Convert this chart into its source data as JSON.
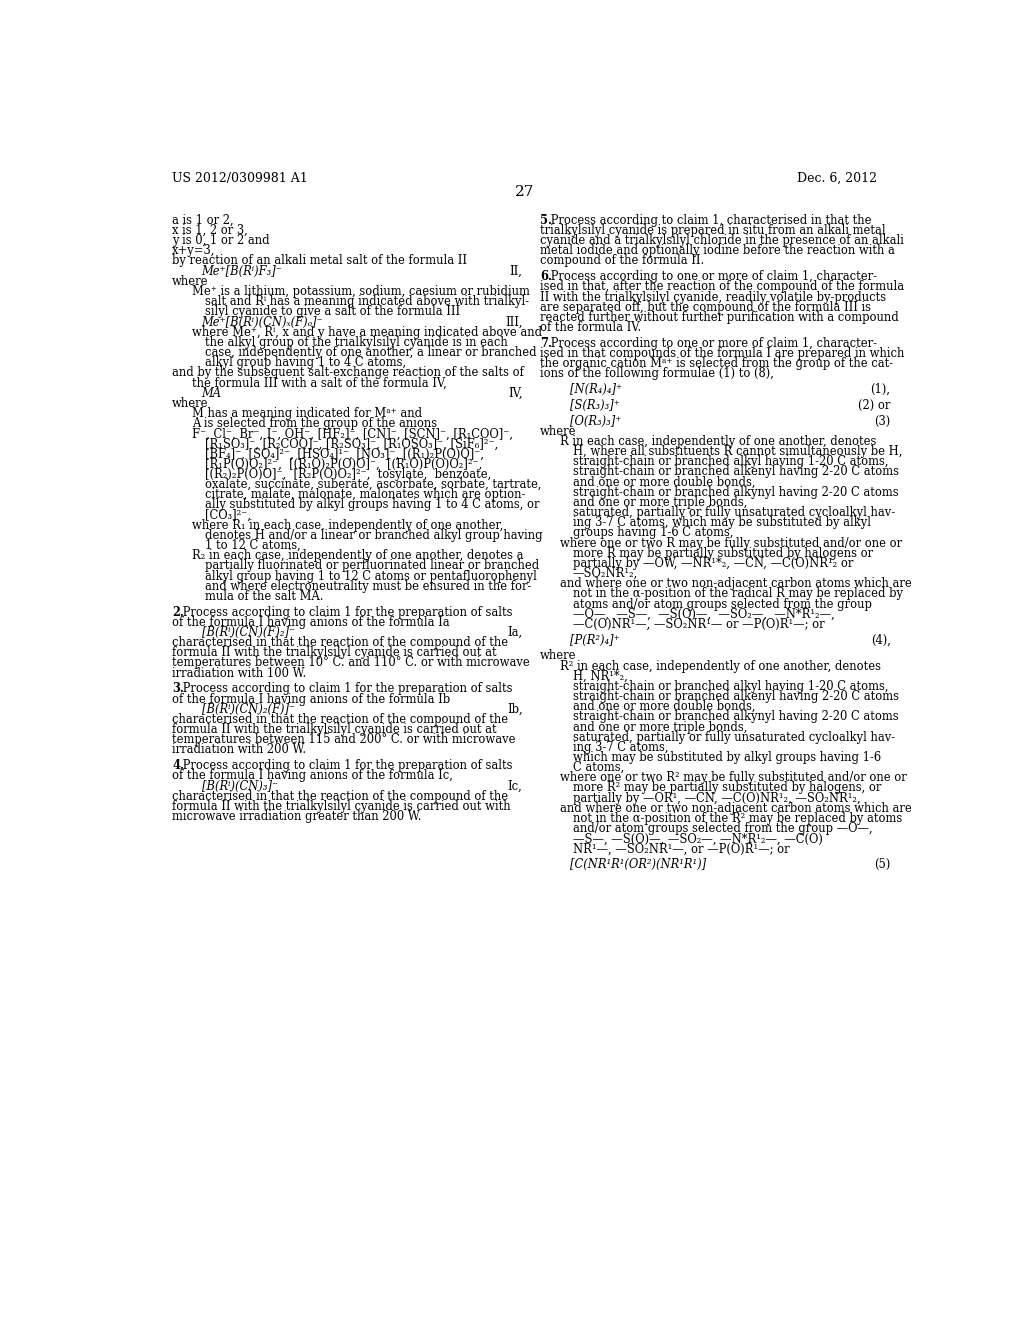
{
  "header_left": "US 2012/0309981 A1",
  "header_right": "Dec. 6, 2012",
  "page_number": "27",
  "background_color": "#ffffff",
  "text_color": "#000000",
  "left_column": [
    {
      "type": "indent0",
      "text": "a is 1 or 2,"
    },
    {
      "type": "indent0",
      "text": "x is 1, 2 or 3,"
    },
    {
      "type": "indent0",
      "text": "y is 0, 1 or 2 and"
    },
    {
      "type": "indent0",
      "text": "x+y=3,"
    },
    {
      "type": "indent0",
      "text": "by reaction of an alkali metal salt of the formula II"
    },
    {
      "type": "formula_line",
      "left": "Me⁺[B(Rⁱ)F₃]⁻",
      "right": "II,"
    },
    {
      "type": "indent0",
      "text": "where"
    },
    {
      "type": "indent1",
      "text": "Me⁺ is a lithium, potassium, sodium, caesium or rubidium"
    },
    {
      "type": "indent2",
      "text": "salt and Rⁱ has a meaning indicated above with trialkyl-"
    },
    {
      "type": "indent2",
      "text": "silyl cyanide to give a salt of the formula III"
    },
    {
      "type": "formula_line",
      "left": "Me⁺[B(Rⁱ)(CN)ₓ(F)ₒ]⁻",
      "right": "III,"
    },
    {
      "type": "indent1",
      "text": "where Me⁺, Rⁱ, x and y have a meaning indicated above and"
    },
    {
      "type": "indent2",
      "text": "the alkyl group of the trialkylsilyl cyanide is in each"
    },
    {
      "type": "indent2",
      "text": "case, independently of one another, a linear or branched"
    },
    {
      "type": "indent2",
      "text": "alkyl group having 1 to 4 C atoms,"
    },
    {
      "type": "indent0",
      "text": "and by the subsequent salt-exchange reaction of the salts of"
    },
    {
      "type": "indent1",
      "text": "the formula III with a salt of the formula IV,"
    },
    {
      "type": "formula_line",
      "left": "MA",
      "right": "IV,"
    },
    {
      "type": "indent0",
      "text": "where"
    },
    {
      "type": "indent1",
      "text": "M has a meaning indicated for Mᵃ⁺ and"
    },
    {
      "type": "indent1",
      "text": "A is selected from the group of the anions"
    },
    {
      "type": "indent1",
      "text": "F⁻, Cl⁻, Br⁻, I⁻, OH⁻, [HF₂]⁻, [CN]⁻, [SCN]⁻, [R₁COO]⁻,"
    },
    {
      "type": "indent2",
      "text": "[R₁SO₃]⁻, [R₂COO]⁻, [R₂SO₃]⁻, [R₁OSO₃]⁻, [SiF₆]²⁻,"
    },
    {
      "type": "indent2",
      "text": "[BF₄]⁻, [SO₄]²⁻, [HSO₄]¹⁻, [NO₃]⁻, [(R₁)₂P(O)O]⁻,"
    },
    {
      "type": "indent2",
      "text": "[R₁P(O)O₂]²⁻,  [(R₁O)₂P(O)O]⁻,  [(R₁O)P(O)O₂]²⁻,"
    },
    {
      "type": "indent2",
      "text": "[(R₂)₂P(O)O]⁻,  [R₂P(O)O₂]²⁻,  tosylate,  benzoate,"
    },
    {
      "type": "indent2",
      "text": "oxalate, succinate, suberate, ascorbate, sorbate, tartrate,"
    },
    {
      "type": "indent2",
      "text": "citrate, malate, malonate, malonates which are option-"
    },
    {
      "type": "indent2",
      "text": "ally substituted by alkyl groups having 1 to 4 C atoms, or"
    },
    {
      "type": "indent2",
      "text": "[CO₃]²⁻,"
    },
    {
      "type": "indent1",
      "text": "where R₁ in each case, independently of one another,"
    },
    {
      "type": "indent2",
      "text": "denotes H and/or a linear or branched alkyl group having"
    },
    {
      "type": "indent2",
      "text": "1 to 12 C atoms,"
    },
    {
      "type": "indent1",
      "text": "R₂ in each case, independently of one another, denotes a"
    },
    {
      "type": "indent2",
      "text": "partially fluorinated or perfluorinated linear or branched"
    },
    {
      "type": "indent2",
      "text": "alkyl group having 1 to 12 C atoms or pentafluorophenyl"
    },
    {
      "type": "indent2",
      "text": "and where electroneutrality must be ensured in the for-"
    },
    {
      "type": "indent2",
      "text": "mula of the salt MA."
    },
    {
      "type": "blank",
      "text": ""
    },
    {
      "type": "claim_num",
      "text": "2. Process according to claim 1 for the preparation of salts"
    },
    {
      "type": "indent0",
      "text": "of the formula I having anions of the formula Ia"
    },
    {
      "type": "formula_line",
      "left": "[B(Rⁱ)(CN)(F)₂]⁻",
      "right": "Ia,"
    },
    {
      "type": "indent0",
      "text": "characterised in that the reaction of the compound of the"
    },
    {
      "type": "indent0",
      "text": "formula II with the trialkylsilyl cyanide is carried out at"
    },
    {
      "type": "indent0",
      "text": "temperatures between 10° C. and 110° C. or with microwave"
    },
    {
      "type": "indent0",
      "text": "irradiation with 100 W."
    },
    {
      "type": "blank",
      "text": ""
    },
    {
      "type": "claim_num",
      "text": "3. Process according to claim 1 for the preparation of salts"
    },
    {
      "type": "indent0",
      "text": "of the formula I having anions of the formula Ib"
    },
    {
      "type": "formula_line",
      "left": "[B(Rⁱ)(CN)₂(F)]⁻",
      "right": "Ib,"
    },
    {
      "type": "indent0",
      "text": "characterised in that the reaction of the compound of the"
    },
    {
      "type": "indent0",
      "text": "formula II with the trialkylsilyl cyanide is carried out at"
    },
    {
      "type": "indent0",
      "text": "temperatures between 115 and 200° C. or with microwave"
    },
    {
      "type": "indent0",
      "text": "irradiation with 200 W."
    },
    {
      "type": "blank",
      "text": ""
    },
    {
      "type": "claim_num",
      "text": "4. Process according to claim 1 for the preparation of salts"
    },
    {
      "type": "indent0",
      "text": "of the formula I having anions of the formula Ic,"
    },
    {
      "type": "formula_line",
      "left": "[B(Rⁱ)(CN)₃]⁻",
      "right": "Ic,"
    },
    {
      "type": "indent0",
      "text": "characterised in that the reaction of the compound of the"
    },
    {
      "type": "indent0",
      "text": "formula II with the trialkylsilyl cyanide is carried out with"
    },
    {
      "type": "indent0",
      "text": "microwave irradiation greater than 200 W."
    }
  ],
  "right_column": [
    {
      "type": "claim_num",
      "text": "5. Process according to claim 1, characterised in that the"
    },
    {
      "type": "indent0",
      "text": "trialkylsilyl cyanide is prepared in situ from an alkali metal"
    },
    {
      "type": "indent0",
      "text": "cyanide and a trialkylsilyl chloride in the presence of an alkali"
    },
    {
      "type": "indent0",
      "text": "metal iodide and optionally iodine before the reaction with a"
    },
    {
      "type": "indent0",
      "text": "compound of the formula II."
    },
    {
      "type": "blank",
      "text": ""
    },
    {
      "type": "claim_num6",
      "text": "6. Process according to one or more of claim 1, character-"
    },
    {
      "type": "indent0",
      "text": "ised in that, after the reaction of the compound of the formula"
    },
    {
      "type": "indent0",
      "text": "II with the trialkylsilyl cyanide, readily volatile by-products"
    },
    {
      "type": "indent0",
      "text": "are separated off, but the compound of the formula III is"
    },
    {
      "type": "indent0",
      "text": "reacted further without further purification with a compound"
    },
    {
      "type": "indent0",
      "text": "of the formula IV."
    },
    {
      "type": "blank",
      "text": ""
    },
    {
      "type": "claim_num",
      "text": "7. Process according to one or more of claim 1, character-"
    },
    {
      "type": "indent0",
      "text": "ised in that compounds of the formula I are prepared in which"
    },
    {
      "type": "indent0",
      "text": "the organic cation Mᵃ⁺ is selected from the group of the cat-"
    },
    {
      "type": "indent0",
      "text": "ions of the following formulae (1) to (8),"
    },
    {
      "type": "blank",
      "text": ""
    },
    {
      "type": "formula_numbered",
      "left": "[N(R₄)₄]⁺",
      "right": "(1),"
    },
    {
      "type": "blank",
      "text": ""
    },
    {
      "type": "formula_numbered",
      "left": "[S(R₃)₃]⁺",
      "right": "(2) or"
    },
    {
      "type": "blank",
      "text": ""
    },
    {
      "type": "formula_numbered",
      "left": "[O(R₃)₃]⁺",
      "right": "(3)"
    },
    {
      "type": "indent0",
      "text": "where"
    },
    {
      "type": "indent1",
      "text": "R in each case, independently of one another, denotes"
    },
    {
      "type": "indent2",
      "text": "H, where all substituents R cannot simultaneously be H,"
    },
    {
      "type": "indent2",
      "text": "straight-chain or branched alkyl having 1-20 C atoms,"
    },
    {
      "type": "indent2",
      "text": "straight-chain or branched alkenyl having 2-20 C atoms"
    },
    {
      "type": "indent2",
      "text": "and one or more double bonds,"
    },
    {
      "type": "indent2",
      "text": "straight-chain or branched alkynyl having 2-20 C atoms"
    },
    {
      "type": "indent2",
      "text": "and one or more triple bonds,"
    },
    {
      "type": "indent2",
      "text": "saturated, partially or fully unsaturated cycloalkyl hav-"
    },
    {
      "type": "indent2",
      "text": "ing 3-7 C atoms, which may be substituted by alkyl"
    },
    {
      "type": "indent2",
      "text": "groups having 1-6 C atoms,"
    },
    {
      "type": "indent1",
      "text": "where one or two R may be fully substituted and/or one or"
    },
    {
      "type": "indent2",
      "text": "more R may be partially substituted by halogens or"
    },
    {
      "type": "indent2",
      "text": "partially by —OW, —NR¹*₂, —CN, —C(O)NR¹₂ or"
    },
    {
      "type": "indent2",
      "text": "—SO₂NR¹₂,"
    },
    {
      "type": "indent1",
      "text": "and where one or two non-adjacent carbon atoms which are"
    },
    {
      "type": "indent2",
      "text": "not in the α-position of the radical R may be replaced by"
    },
    {
      "type": "indent2",
      "text": "atoms and/or atom groups selected from the group"
    },
    {
      "type": "indent2",
      "text": "—O—,  —S—,  —S(O)—,  —SO₂—,  —N*R¹₂—,"
    },
    {
      "type": "indent2",
      "text": "—C(O)NR¹—, —SO₂NR¹— or —P(O)R¹—; or"
    },
    {
      "type": "blank",
      "text": ""
    },
    {
      "type": "formula_numbered",
      "left": "[P(R²)₄]⁺",
      "right": "(4),"
    },
    {
      "type": "blank",
      "text": ""
    },
    {
      "type": "indent0",
      "text": "where"
    },
    {
      "type": "indent1",
      "text": "R² in each case, independently of one another, denotes"
    },
    {
      "type": "indent2",
      "text": "H, NR¹*₂,"
    },
    {
      "type": "indent2",
      "text": "straight-chain or branched alkyl having 1-20 C atoms,"
    },
    {
      "type": "indent2",
      "text": "straight-chain or branched alkenyl having 2-20 C atoms"
    },
    {
      "type": "indent2",
      "text": "and one or more double bonds,"
    },
    {
      "type": "indent2",
      "text": "straight-chain or branched alkynyl having 2-20 C atoms"
    },
    {
      "type": "indent2",
      "text": "and one or more triple bonds,"
    },
    {
      "type": "indent2",
      "text": "saturated, partially or fully unsaturated cycloalkyl hav-"
    },
    {
      "type": "indent2",
      "text": "ing 3-7 C atoms,"
    },
    {
      "type": "indent2",
      "text": "which may be substituted by alkyl groups having 1-6"
    },
    {
      "type": "indent2",
      "text": "C atoms,"
    },
    {
      "type": "indent1",
      "text": "where one or two R² may be fully substituted and/or one or"
    },
    {
      "type": "indent2",
      "text": "more R² may be partially substituted by halogens, or"
    },
    {
      "type": "indent2",
      "text": "partially by —OR¹, —CN, —C(O)NR¹₂, —SO₂NR¹₂,"
    },
    {
      "type": "indent1",
      "text": "and where one or two non-adjacent carbon atoms which are"
    },
    {
      "type": "indent2",
      "text": "not in the α-position of the R² may be replaced by atoms"
    },
    {
      "type": "indent2",
      "text": "and/or atom groups selected from the group —O—,"
    },
    {
      "type": "indent2",
      "text": "—S—, —S(O)—, —SO₂—, —N*R¹₂—, —C(O)"
    },
    {
      "type": "indent2",
      "text": "NR¹—, —SO₂NR¹—, or —P(O)R¹—; or"
    },
    {
      "type": "blank",
      "text": ""
    },
    {
      "type": "formula_numbered",
      "left": "[C(NR¹R¹(OR²)(NR¹R¹)]",
      "right": "(5)"
    }
  ]
}
